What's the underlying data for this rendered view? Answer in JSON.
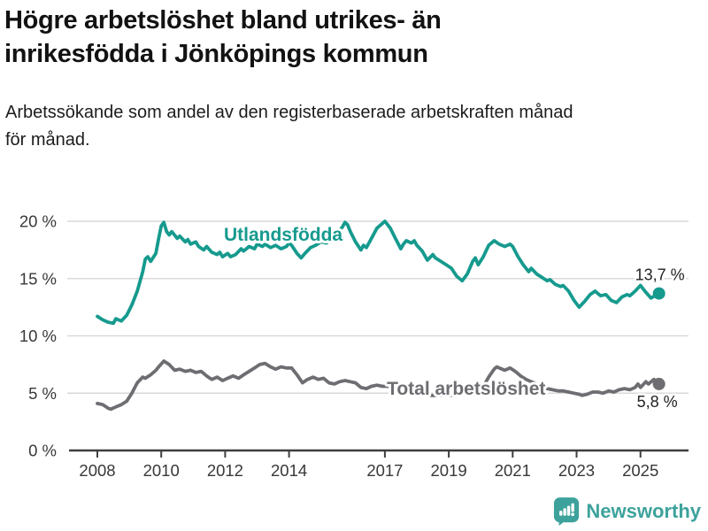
{
  "header": {
    "title_lines": [
      "Högre arbetslöshet bland utrikes- än",
      "inrikesfödda i Jönköpings kommun"
    ],
    "subtitle_lines": [
      "Arbetssökande som andel av den registerbaserade arbetskraften månad",
      "för månad."
    ]
  },
  "chart_data": {
    "type": "line",
    "x_axis": {
      "tick_years": [
        2008,
        2010,
        2012,
        2014,
        2017,
        2019,
        2021,
        2023,
        2025
      ],
      "range": [
        2008,
        2025.58
      ]
    },
    "y_axis": {
      "tick_values": [
        0,
        5,
        10,
        15,
        20
      ],
      "tick_labels": [
        "0 %",
        "5 %",
        "10 %",
        "15 %",
        "20 %"
      ],
      "range": [
        0,
        20
      ],
      "grid": true
    },
    "colors": {
      "utlandsfodda": "#169a8e",
      "total": "#6d6d72",
      "grid": "#d9d9d9",
      "axis": "#3f3f3f",
      "text": "#383838",
      "value_label": "#222222"
    },
    "series": [
      {
        "id": "utlandsfodda",
        "name": "Utlandsfödda",
        "color": "#169a8e",
        "end_label": "13,7 %",
        "label_pos": {
          "x": 2011.96,
          "y": 18.3
        },
        "points": [
          [
            2008.0,
            11.7
          ],
          [
            2008.17,
            11.4
          ],
          [
            2008.33,
            11.2
          ],
          [
            2008.5,
            11.1
          ],
          [
            2008.58,
            11.5
          ],
          [
            2008.75,
            11.3
          ],
          [
            2008.92,
            11.8
          ],
          [
            2009.08,
            12.7
          ],
          [
            2009.25,
            13.9
          ],
          [
            2009.42,
            15.6
          ],
          [
            2009.5,
            16.7
          ],
          [
            2009.58,
            16.9
          ],
          [
            2009.67,
            16.5
          ],
          [
            2009.83,
            17.2
          ],
          [
            2009.92,
            18.5
          ],
          [
            2010.0,
            19.6
          ],
          [
            2010.08,
            19.9
          ],
          [
            2010.17,
            19.1
          ],
          [
            2010.25,
            18.8
          ],
          [
            2010.33,
            19.1
          ],
          [
            2010.5,
            18.5
          ],
          [
            2010.58,
            18.7
          ],
          [
            2010.75,
            18.2
          ],
          [
            2010.83,
            18.4
          ],
          [
            2010.92,
            18.0
          ],
          [
            2011.08,
            18.2
          ],
          [
            2011.17,
            17.8
          ],
          [
            2011.33,
            17.5
          ],
          [
            2011.42,
            17.8
          ],
          [
            2011.58,
            17.3
          ],
          [
            2011.75,
            17.1
          ],
          [
            2011.83,
            17.3
          ],
          [
            2011.92,
            16.9
          ],
          [
            2012.08,
            17.2
          ],
          [
            2012.17,
            16.9
          ],
          [
            2012.33,
            17.1
          ],
          [
            2012.5,
            17.6
          ],
          [
            2012.58,
            17.4
          ],
          [
            2012.75,
            17.8
          ],
          [
            2012.92,
            17.6
          ],
          [
            2013.0,
            18.0
          ],
          [
            2013.17,
            17.8
          ],
          [
            2013.25,
            18.0
          ],
          [
            2013.42,
            17.7
          ],
          [
            2013.58,
            17.9
          ],
          [
            2013.75,
            17.6
          ],
          [
            2013.92,
            17.8
          ],
          [
            2014.0,
            18.1
          ],
          [
            2014.08,
            17.9
          ],
          [
            2014.25,
            17.2
          ],
          [
            2014.38,
            16.8
          ],
          [
            2014.5,
            17.2
          ],
          [
            2014.67,
            17.7
          ],
          [
            2014.83,
            17.9
          ],
          [
            2015.0,
            18.2
          ],
          [
            2015.17,
            18.1
          ],
          [
            2015.33,
            18.4
          ],
          [
            2015.5,
            18.9
          ],
          [
            2015.67,
            19.5
          ],
          [
            2015.75,
            19.9
          ],
          [
            2015.83,
            19.7
          ],
          [
            2015.92,
            19.1
          ],
          [
            2016.08,
            18.2
          ],
          [
            2016.25,
            17.5
          ],
          [
            2016.33,
            17.9
          ],
          [
            2016.42,
            17.7
          ],
          [
            2016.58,
            18.5
          ],
          [
            2016.75,
            19.4
          ],
          [
            2016.92,
            19.8
          ],
          [
            2017.0,
            20.0
          ],
          [
            2017.17,
            19.4
          ],
          [
            2017.33,
            18.5
          ],
          [
            2017.5,
            17.6
          ],
          [
            2017.58,
            18.0
          ],
          [
            2017.67,
            18.3
          ],
          [
            2017.83,
            18.1
          ],
          [
            2017.92,
            18.3
          ],
          [
            2018.0,
            17.9
          ],
          [
            2018.17,
            17.4
          ],
          [
            2018.33,
            16.6
          ],
          [
            2018.5,
            17.1
          ],
          [
            2018.58,
            16.8
          ],
          [
            2018.75,
            16.5
          ],
          [
            2018.92,
            16.2
          ],
          [
            2019.08,
            15.9
          ],
          [
            2019.25,
            15.2
          ],
          [
            2019.42,
            14.8
          ],
          [
            2019.58,
            15.4
          ],
          [
            2019.75,
            16.5
          ],
          [
            2019.83,
            16.8
          ],
          [
            2019.92,
            16.2
          ],
          [
            2020.08,
            16.9
          ],
          [
            2020.25,
            17.9
          ],
          [
            2020.42,
            18.3
          ],
          [
            2020.58,
            18.0
          ],
          [
            2020.75,
            17.8
          ],
          [
            2020.92,
            18.0
          ],
          [
            2021.0,
            17.8
          ],
          [
            2021.17,
            16.9
          ],
          [
            2021.33,
            16.2
          ],
          [
            2021.5,
            15.6
          ],
          [
            2021.58,
            15.9
          ],
          [
            2021.75,
            15.4
          ],
          [
            2021.92,
            15.1
          ],
          [
            2022.08,
            14.8
          ],
          [
            2022.17,
            14.9
          ],
          [
            2022.33,
            14.5
          ],
          [
            2022.5,
            14.3
          ],
          [
            2022.58,
            14.4
          ],
          [
            2022.75,
            13.9
          ],
          [
            2022.92,
            13.1
          ],
          [
            2023.08,
            12.5
          ],
          [
            2023.25,
            13.0
          ],
          [
            2023.42,
            13.6
          ],
          [
            2023.58,
            13.9
          ],
          [
            2023.75,
            13.5
          ],
          [
            2023.92,
            13.6
          ],
          [
            2024.08,
            13.1
          ],
          [
            2024.25,
            12.9
          ],
          [
            2024.42,
            13.4
          ],
          [
            2024.58,
            13.6
          ],
          [
            2024.67,
            13.5
          ],
          [
            2024.83,
            13.9
          ],
          [
            2025.0,
            14.4
          ],
          [
            2025.17,
            13.8
          ],
          [
            2025.33,
            13.3
          ],
          [
            2025.45,
            13.5
          ],
          [
            2025.58,
            13.7
          ]
        ]
      },
      {
        "id": "total",
        "name": "Total arbetslöshet",
        "color": "#6d6d72",
        "end_label": "5,8 %",
        "label_pos": {
          "x": 2017.06,
          "y": 4.86
        },
        "points": [
          [
            2008.0,
            4.1
          ],
          [
            2008.17,
            4.0
          ],
          [
            2008.33,
            3.7
          ],
          [
            2008.42,
            3.6
          ],
          [
            2008.58,
            3.8
          ],
          [
            2008.75,
            4.0
          ],
          [
            2008.92,
            4.3
          ],
          [
            2009.08,
            5.0
          ],
          [
            2009.25,
            5.9
          ],
          [
            2009.42,
            6.4
          ],
          [
            2009.5,
            6.3
          ],
          [
            2009.67,
            6.6
          ],
          [
            2009.83,
            7.0
          ],
          [
            2009.92,
            7.3
          ],
          [
            2010.08,
            7.8
          ],
          [
            2010.25,
            7.5
          ],
          [
            2010.42,
            7.0
          ],
          [
            2010.58,
            7.1
          ],
          [
            2010.75,
            6.9
          ],
          [
            2010.92,
            7.0
          ],
          [
            2011.08,
            6.8
          ],
          [
            2011.25,
            6.9
          ],
          [
            2011.42,
            6.5
          ],
          [
            2011.58,
            6.2
          ],
          [
            2011.75,
            6.4
          ],
          [
            2011.92,
            6.1
          ],
          [
            2012.08,
            6.3
          ],
          [
            2012.25,
            6.5
          ],
          [
            2012.42,
            6.3
          ],
          [
            2012.58,
            6.6
          ],
          [
            2012.75,
            6.9
          ],
          [
            2012.92,
            7.2
          ],
          [
            2013.08,
            7.5
          ],
          [
            2013.25,
            7.6
          ],
          [
            2013.42,
            7.3
          ],
          [
            2013.58,
            7.1
          ],
          [
            2013.75,
            7.3
          ],
          [
            2013.92,
            7.2
          ],
          [
            2014.08,
            7.2
          ],
          [
            2014.25,
            6.6
          ],
          [
            2014.42,
            5.9
          ],
          [
            2014.58,
            6.2
          ],
          [
            2014.75,
            6.4
          ],
          [
            2014.92,
            6.2
          ],
          [
            2015.08,
            6.3
          ],
          [
            2015.25,
            5.9
          ],
          [
            2015.42,
            5.8
          ],
          [
            2015.58,
            6.0
          ],
          [
            2015.75,
            6.1
          ],
          [
            2015.92,
            6.0
          ],
          [
            2016.08,
            5.9
          ],
          [
            2016.25,
            5.5
          ],
          [
            2016.42,
            5.4
          ],
          [
            2016.58,
            5.6
          ],
          [
            2016.75,
            5.7
          ],
          [
            2016.92,
            5.6
          ],
          [
            2017.08,
            5.6
          ],
          [
            2017.25,
            5.5
          ],
          [
            2017.42,
            5.3
          ],
          [
            2017.58,
            5.2
          ],
          [
            2017.75,
            5.2
          ],
          [
            2017.92,
            5.1
          ],
          [
            2018.08,
            5.0
          ],
          [
            2018.25,
            4.9
          ],
          [
            2018.42,
            4.8
          ],
          [
            2018.58,
            4.8
          ],
          [
            2018.75,
            4.8
          ],
          [
            2018.92,
            4.8
          ],
          [
            2019.08,
            4.8
          ],
          [
            2019.25,
            4.9
          ],
          [
            2019.42,
            4.9
          ],
          [
            2019.58,
            5.0
          ],
          [
            2019.75,
            5.1
          ],
          [
            2019.92,
            5.2
          ],
          [
            2020.08,
            5.6
          ],
          [
            2020.25,
            6.4
          ],
          [
            2020.42,
            7.1
          ],
          [
            2020.5,
            7.3
          ],
          [
            2020.58,
            7.2
          ],
          [
            2020.75,
            7.0
          ],
          [
            2020.92,
            7.2
          ],
          [
            2021.08,
            6.9
          ],
          [
            2021.25,
            6.5
          ],
          [
            2021.42,
            6.2
          ],
          [
            2021.58,
            6.0
          ],
          [
            2021.75,
            5.8
          ],
          [
            2021.92,
            5.6
          ],
          [
            2022.08,
            5.4
          ],
          [
            2022.25,
            5.3
          ],
          [
            2022.42,
            5.2
          ],
          [
            2022.58,
            5.2
          ],
          [
            2022.75,
            5.1
          ],
          [
            2022.92,
            5.0
          ],
          [
            2023.08,
            4.9
          ],
          [
            2023.17,
            4.8
          ],
          [
            2023.33,
            4.9
          ],
          [
            2023.5,
            5.1
          ],
          [
            2023.67,
            5.1
          ],
          [
            2023.83,
            5.0
          ],
          [
            2024.0,
            5.2
          ],
          [
            2024.17,
            5.1
          ],
          [
            2024.33,
            5.3
          ],
          [
            2024.5,
            5.4
          ],
          [
            2024.67,
            5.3
          ],
          [
            2024.83,
            5.5
          ],
          [
            2024.92,
            5.8
          ],
          [
            2025.0,
            5.5
          ],
          [
            2025.17,
            6.0
          ],
          [
            2025.25,
            5.8
          ],
          [
            2025.42,
            6.2
          ],
          [
            2025.58,
            5.8
          ]
        ]
      }
    ]
  },
  "footer": {
    "brand": "Newsworthy",
    "brand_color": "#3da29c",
    "logo_icon": "bar-chart-speech-bubble"
  }
}
